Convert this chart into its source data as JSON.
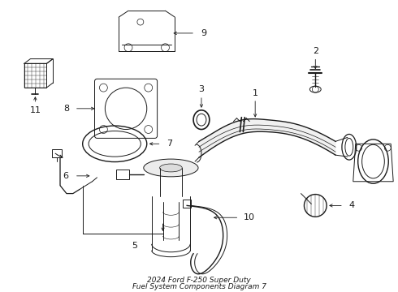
{
  "title": "2024 Ford F-250 Super Duty",
  "subtitle": "Fuel System Components Diagram 7",
  "background_color": "#ffffff",
  "line_color": "#1a1a1a",
  "fig_width": 4.9,
  "fig_height": 3.6,
  "dpi": 100
}
